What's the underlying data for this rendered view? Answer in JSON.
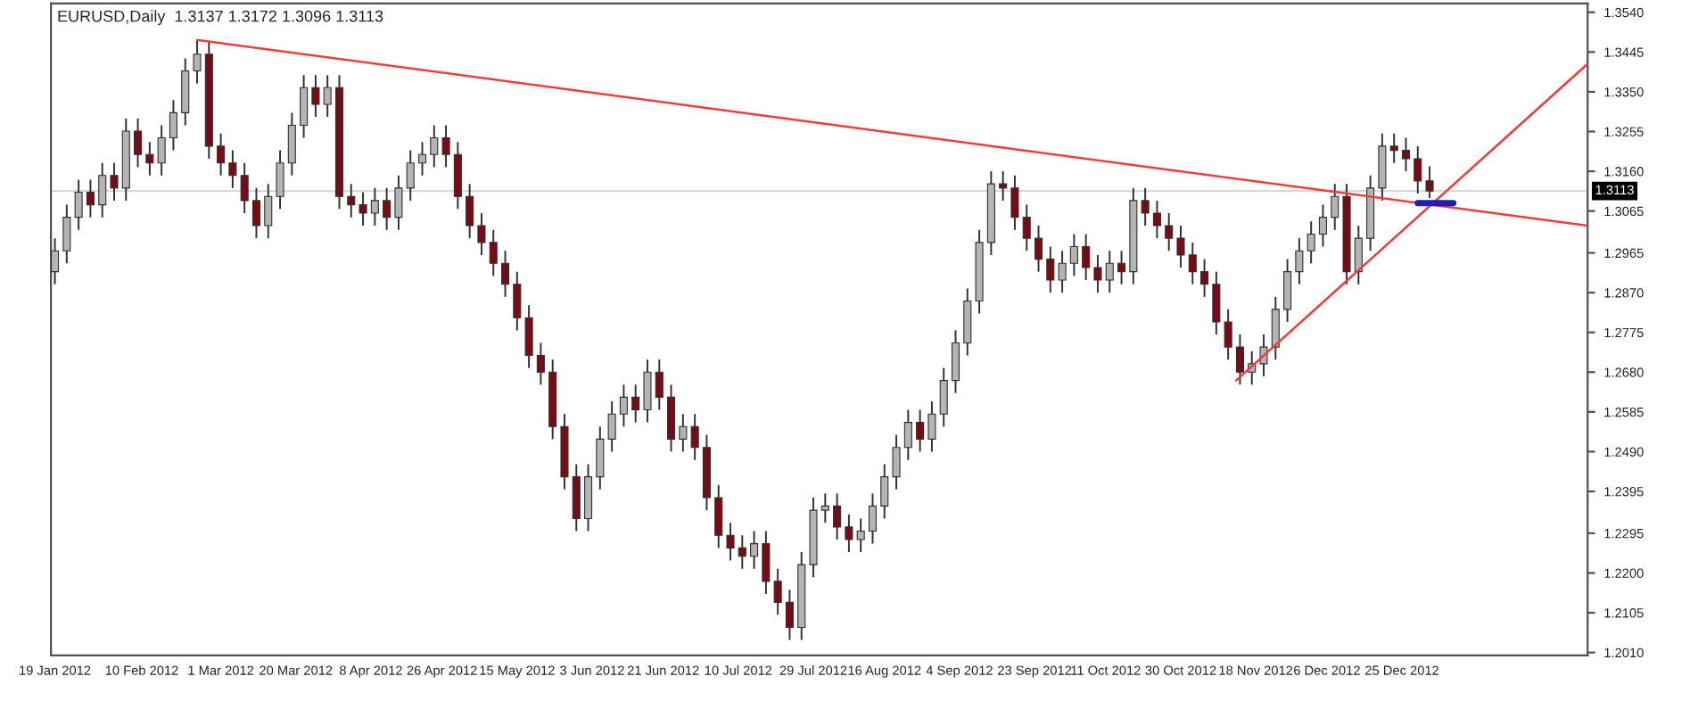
{
  "chart_data": {
    "type": "candlestick",
    "title": "EURUSD,Daily  1.3137 1.3172 1.3096 1.3113",
    "x": [
      "2012-01-19",
      "2012-01-22",
      "2012-01-25",
      "2012-01-28",
      "2012-01-31",
      "2012-02-03",
      "2012-02-06",
      "2012-02-09",
      "2012-02-12",
      "2012-02-15",
      "2012-02-18",
      "2012-02-21",
      "2012-02-24",
      "2012-02-27",
      "2012-03-01",
      "2012-03-04",
      "2012-03-07",
      "2012-03-10",
      "2012-03-13",
      "2012-03-16",
      "2012-03-19",
      "2012-03-22",
      "2012-03-25",
      "2012-03-28",
      "2012-03-31",
      "2012-04-03",
      "2012-04-06",
      "2012-04-09",
      "2012-04-12",
      "2012-04-15",
      "2012-04-18",
      "2012-04-21",
      "2012-04-24",
      "2012-04-27",
      "2012-04-30",
      "2012-05-03",
      "2012-05-06",
      "2012-05-09",
      "2012-05-12",
      "2012-05-15",
      "2012-05-18",
      "2012-05-21",
      "2012-05-24",
      "2012-05-27",
      "2012-05-30",
      "2012-06-02",
      "2012-06-05",
      "2012-06-08",
      "2012-06-11",
      "2012-06-14",
      "2012-06-17",
      "2012-06-20",
      "2012-06-23",
      "2012-06-26",
      "2012-06-29",
      "2012-07-02",
      "2012-07-05",
      "2012-07-08",
      "2012-07-11",
      "2012-07-14",
      "2012-07-17",
      "2012-07-20",
      "2012-07-23",
      "2012-07-26",
      "2012-07-29",
      "2012-08-01",
      "2012-08-04",
      "2012-08-07",
      "2012-08-10",
      "2012-08-13",
      "2012-08-16",
      "2012-08-19",
      "2012-08-22",
      "2012-08-25",
      "2012-08-28",
      "2012-08-31",
      "2012-09-03",
      "2012-09-06",
      "2012-09-09",
      "2012-09-12",
      "2012-09-15",
      "2012-09-18",
      "2012-09-21",
      "2012-09-24",
      "2012-09-27",
      "2012-09-30",
      "2012-10-03",
      "2012-10-06",
      "2012-10-09",
      "2012-10-12",
      "2012-10-15",
      "2012-10-18",
      "2012-10-21",
      "2012-10-24",
      "2012-10-27",
      "2012-10-30",
      "2012-11-02",
      "2012-11-05",
      "2012-11-08",
      "2012-11-11",
      "2012-11-14",
      "2012-11-17",
      "2012-11-20",
      "2012-11-23",
      "2012-11-26",
      "2012-11-29",
      "2012-12-02",
      "2012-12-05",
      "2012-12-08",
      "2012-12-11",
      "2012-12-14",
      "2012-12-17",
      "2012-12-20",
      "2012-12-23",
      "2012-12-26",
      "2012-12-29",
      "2013-01-01"
    ],
    "ohlc": [
      [
        1.292,
        1.3,
        1.289,
        1.297
      ],
      [
        1.297,
        1.308,
        1.294,
        1.305
      ],
      [
        1.305,
        1.314,
        1.302,
        1.311
      ],
      [
        1.311,
        1.314,
        1.305,
        1.308
      ],
      [
        1.308,
        1.318,
        1.305,
        1.315
      ],
      [
        1.315,
        1.318,
        1.309,
        1.312
      ],
      [
        1.312,
        1.3286,
        1.309,
        1.3256
      ],
      [
        1.3256,
        1.3286,
        1.317,
        1.32
      ],
      [
        1.32,
        1.323,
        1.315,
        1.318
      ],
      [
        1.318,
        1.327,
        1.315,
        1.324
      ],
      [
        1.324,
        1.333,
        1.321,
        1.33
      ],
      [
        1.33,
        1.343,
        1.327,
        1.34
      ],
      [
        1.34,
        1.3474,
        1.337,
        1.344
      ],
      [
        1.344,
        1.347,
        1.319,
        1.322
      ],
      [
        1.322,
        1.325,
        1.315,
        1.318
      ],
      [
        1.318,
        1.321,
        1.312,
        1.315
      ],
      [
        1.315,
        1.318,
        1.306,
        1.309
      ],
      [
        1.309,
        1.312,
        1.3,
        1.303
      ],
      [
        1.303,
        1.313,
        1.3,
        1.31
      ],
      [
        1.31,
        1.321,
        1.307,
        1.318
      ],
      [
        1.318,
        1.33,
        1.315,
        1.327
      ],
      [
        1.327,
        1.339,
        1.324,
        1.336
      ],
      [
        1.336,
        1.339,
        1.329,
        1.332
      ],
      [
        1.332,
        1.339,
        1.329,
        1.336
      ],
      [
        1.336,
        1.339,
        1.307,
        1.31
      ],
      [
        1.31,
        1.313,
        1.305,
        1.308
      ],
      [
        1.308,
        1.311,
        1.303,
        1.306
      ],
      [
        1.306,
        1.312,
        1.303,
        1.309
      ],
      [
        1.309,
        1.312,
        1.302,
        1.305
      ],
      [
        1.305,
        1.315,
        1.302,
        1.312
      ],
      [
        1.312,
        1.321,
        1.309,
        1.318
      ],
      [
        1.318,
        1.323,
        1.315,
        1.32
      ],
      [
        1.32,
        1.327,
        1.317,
        1.324
      ],
      [
        1.324,
        1.327,
        1.317,
        1.32
      ],
      [
        1.32,
        1.323,
        1.307,
        1.31
      ],
      [
        1.31,
        1.313,
        1.3,
        1.303
      ],
      [
        1.303,
        1.306,
        1.296,
        1.299
      ],
      [
        1.299,
        1.302,
        1.291,
        1.294
      ],
      [
        1.294,
        1.297,
        1.286,
        1.289
      ],
      [
        1.289,
        1.292,
        1.278,
        1.281
      ],
      [
        1.281,
        1.284,
        1.269,
        1.272
      ],
      [
        1.272,
        1.275,
        1.265,
        1.268
      ],
      [
        1.268,
        1.271,
        1.252,
        1.255
      ],
      [
        1.255,
        1.258,
        1.24,
        1.243
      ],
      [
        1.243,
        1.246,
        1.23,
        1.233
      ],
      [
        1.233,
        1.246,
        1.23,
        1.243
      ],
      [
        1.243,
        1.255,
        1.24,
        1.252
      ],
      [
        1.252,
        1.261,
        1.249,
        1.258
      ],
      [
        1.258,
        1.265,
        1.255,
        1.262
      ],
      [
        1.262,
        1.265,
        1.256,
        1.259
      ],
      [
        1.259,
        1.271,
        1.256,
        1.268
      ],
      [
        1.268,
        1.271,
        1.259,
        1.262
      ],
      [
        1.262,
        1.265,
        1.249,
        1.252
      ],
      [
        1.252,
        1.258,
        1.249,
        1.255
      ],
      [
        1.255,
        1.258,
        1.247,
        1.25
      ],
      [
        1.25,
        1.253,
        1.235,
        1.238
      ],
      [
        1.238,
        1.241,
        1.226,
        1.229
      ],
      [
        1.229,
        1.232,
        1.223,
        1.226
      ],
      [
        1.226,
        1.229,
        1.221,
        1.224
      ],
      [
        1.224,
        1.23,
        1.221,
        1.227
      ],
      [
        1.227,
        1.23,
        1.215,
        1.218
      ],
      [
        1.218,
        1.221,
        1.21,
        1.213
      ],
      [
        1.213,
        1.216,
        1.204,
        1.207
      ],
      [
        1.207,
        1.225,
        1.204,
        1.222
      ],
      [
        1.222,
        1.238,
        1.219,
        1.235
      ],
      [
        1.235,
        1.239,
        1.232,
        1.236
      ],
      [
        1.236,
        1.239,
        1.228,
        1.231
      ],
      [
        1.231,
        1.234,
        1.225,
        1.228
      ],
      [
        1.228,
        1.233,
        1.225,
        1.23
      ],
      [
        1.23,
        1.239,
        1.227,
        1.236
      ],
      [
        1.236,
        1.246,
        1.233,
        1.243
      ],
      [
        1.243,
        1.253,
        1.24,
        1.25
      ],
      [
        1.25,
        1.259,
        1.247,
        1.256
      ],
      [
        1.256,
        1.259,
        1.249,
        1.252
      ],
      [
        1.252,
        1.261,
        1.249,
        1.258
      ],
      [
        1.258,
        1.269,
        1.255,
        1.266
      ],
      [
        1.266,
        1.278,
        1.263,
        1.275
      ],
      [
        1.275,
        1.288,
        1.272,
        1.285
      ],
      [
        1.285,
        1.302,
        1.282,
        1.299
      ],
      [
        1.299,
        1.316,
        1.296,
        1.313
      ],
      [
        1.313,
        1.316,
        1.309,
        1.312
      ],
      [
        1.312,
        1.315,
        1.302,
        1.305
      ],
      [
        1.305,
        1.308,
        1.297,
        1.3
      ],
      [
        1.3,
        1.303,
        1.292,
        1.295
      ],
      [
        1.295,
        1.298,
        1.287,
        1.29
      ],
      [
        1.29,
        1.297,
        1.287,
        1.294
      ],
      [
        1.294,
        1.301,
        1.291,
        1.298
      ],
      [
        1.298,
        1.301,
        1.29,
        1.293
      ],
      [
        1.293,
        1.296,
        1.287,
        1.29
      ],
      [
        1.29,
        1.297,
        1.287,
        1.294
      ],
      [
        1.294,
        1.297,
        1.289,
        1.292
      ],
      [
        1.292,
        1.312,
        1.289,
        1.309
      ],
      [
        1.309,
        1.312,
        1.303,
        1.306
      ],
      [
        1.306,
        1.309,
        1.3,
        1.303
      ],
      [
        1.303,
        1.306,
        1.297,
        1.3
      ],
      [
        1.3,
        1.303,
        1.293,
        1.296
      ],
      [
        1.296,
        1.299,
        1.289,
        1.292
      ],
      [
        1.292,
        1.295,
        1.286,
        1.289
      ],
      [
        1.289,
        1.292,
        1.277,
        1.28
      ],
      [
        1.28,
        1.283,
        1.271,
        1.274
      ],
      [
        1.274,
        1.277,
        1.265,
        1.268
      ],
      [
        1.268,
        1.273,
        1.265,
        1.27
      ],
      [
        1.27,
        1.277,
        1.267,
        1.274
      ],
      [
        1.274,
        1.286,
        1.271,
        1.283
      ],
      [
        1.283,
        1.295,
        1.28,
        1.292
      ],
      [
        1.292,
        1.3,
        1.289,
        1.297
      ],
      [
        1.297,
        1.304,
        1.294,
        1.301
      ],
      [
        1.301,
        1.308,
        1.298,
        1.305
      ],
      [
        1.305,
        1.313,
        1.302,
        1.31
      ],
      [
        1.31,
        1.313,
        1.289,
        1.292
      ],
      [
        1.292,
        1.303,
        1.289,
        1.3
      ],
      [
        1.3,
        1.315,
        1.297,
        1.312
      ],
      [
        1.312,
        1.325,
        1.309,
        1.322
      ],
      [
        1.322,
        1.325,
        1.318,
        1.321
      ],
      [
        1.321,
        1.324,
        1.316,
        1.319
      ],
      [
        1.319,
        1.322,
        1.3107,
        1.3137
      ],
      [
        1.3137,
        1.3172,
        1.3096,
        1.3113
      ]
    ],
    "series": [
      {
        "type": "line",
        "color": "#f03c3c",
        "x": [
          "2012-02-24",
          "2013-02-10"
        ],
        "values": [
          1.3474,
          1.303
        ]
      },
      {
        "type": "line",
        "color": "#f03c3c",
        "x": [
          "2012-11-13",
          "2013-02-10"
        ],
        "values": [
          1.266,
          1.3417
        ]
      },
      {
        "type": "line",
        "color": "#2020b0",
        "x": [
          "2012-12-29",
          "2013-01-07"
        ],
        "values": [
          1.3084,
          1.3084
        ]
      }
    ],
    "ref_lines": [
      {
        "axis": "y",
        "value": 1.3113,
        "label": "1.3113",
        "color": "#d8d8d8"
      }
    ],
    "xlim": [
      "2012-01-18",
      "2013-02-10"
    ],
    "xticks": [
      {
        "value": "2012-01-19",
        "label": "19 Jan 2012"
      },
      {
        "value": "2012-02-10",
        "label": "10 Feb 2012"
      },
      {
        "value": "2012-03-01",
        "label": "1 Mar 2012"
      },
      {
        "value": "2012-03-20",
        "label": "20 Mar 2012"
      },
      {
        "value": "2012-04-08",
        "label": "8 Apr 2012"
      },
      {
        "value": "2012-04-26",
        "label": "26 Apr 2012"
      },
      {
        "value": "2012-05-15",
        "label": "15 May 2012"
      },
      {
        "value": "2012-06-03",
        "label": "3 Jun 2012"
      },
      {
        "value": "2012-06-21",
        "label": "21 Jun 2012"
      },
      {
        "value": "2012-07-10",
        "label": "10 Jul 2012"
      },
      {
        "value": "2012-07-29",
        "label": "29 Jul 2012"
      },
      {
        "value": "2012-08-16",
        "label": "16 Aug 2012"
      },
      {
        "value": "2012-09-04",
        "label": "4 Sep 2012"
      },
      {
        "value": "2012-09-23",
        "label": "23 Sep 2012"
      },
      {
        "value": "2012-10-11",
        "label": "11 Oct 2012"
      },
      {
        "value": "2012-10-30",
        "label": "30 Oct 2012"
      },
      {
        "value": "2012-11-18",
        "label": "18 Nov 2012"
      },
      {
        "value": "2012-12-06",
        "label": "6 Dec 2012"
      },
      {
        "value": "2012-12-25",
        "label": "25 Dec 2012"
      }
    ],
    "ylim": [
      1.2003,
      1.3561
    ],
    "yticks": [
      {
        "value": 1.354,
        "label": "1.3540"
      },
      {
        "value": 1.3445,
        "label": "1.3445"
      },
      {
        "value": 1.335,
        "label": "1.3350"
      },
      {
        "value": 1.3255,
        "label": "1.3255"
      },
      {
        "value": 1.316,
        "label": "1.3160"
      },
      {
        "value": 1.3065,
        "label": "1.3065"
      },
      {
        "value": 1.2965,
        "label": "1.2965"
      },
      {
        "value": 1.287,
        "label": "1.2870"
      },
      {
        "value": 1.2775,
        "label": "1.2775"
      },
      {
        "value": 1.268,
        "label": "1.2680"
      },
      {
        "value": 1.2585,
        "label": "1.2585"
      },
      {
        "value": 1.249,
        "label": "1.2490"
      },
      {
        "value": 1.2395,
        "label": "1.2395"
      },
      {
        "value": 1.2295,
        "label": "1.2295"
      },
      {
        "value": 1.22,
        "label": "1.2200"
      },
      {
        "value": 1.2105,
        "label": "1.2105"
      },
      {
        "value": 1.201,
        "label": "1.2010"
      }
    ],
    "grid": false,
    "legend": false
  }
}
